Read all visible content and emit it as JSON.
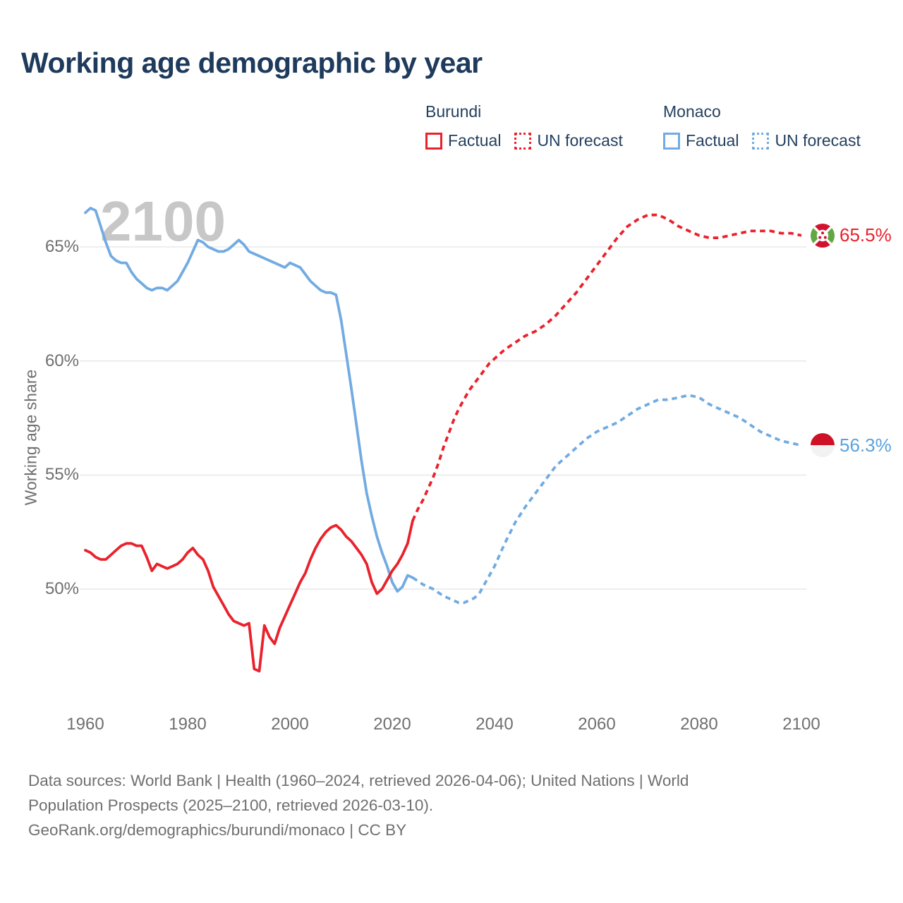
{
  "title": "Working age demographic by year",
  "watermark": "2100",
  "legend": {
    "countries": [
      {
        "name": "Burundi",
        "color": "#e9222c",
        "items": [
          {
            "label": "Factual",
            "style": "solid"
          },
          {
            "label": "UN forecast",
            "style": "dotted"
          }
        ]
      },
      {
        "name": "Monaco",
        "color": "#72abe2",
        "items": [
          {
            "label": "Factual",
            "style": "solid"
          },
          {
            "label": "UN forecast",
            "style": "dotted"
          }
        ]
      }
    ]
  },
  "chart_data": {
    "type": "line",
    "title": "Working age demographic by year",
    "xlabel": "",
    "ylabel": "Working age share",
    "x_ticks": [
      1960,
      1980,
      2000,
      2020,
      2040,
      2060,
      2080,
      2100
    ],
    "y_ticks": [
      {
        "label": "65%",
        "value": 65
      },
      {
        "label": "60%",
        "value": 60
      },
      {
        "label": "55%",
        "value": 55
      },
      {
        "label": "50%",
        "value": 50
      }
    ],
    "xlim": [
      1958,
      2104
    ],
    "ylim": [
      46,
      67.5
    ],
    "grid": true,
    "legend_position": "top-right",
    "series": [
      {
        "name": "Monaco Factual",
        "country": "Monaco",
        "kind": "factual",
        "color": "#72abe2",
        "dashed": false,
        "points": [
          [
            1960,
            66.5
          ],
          [
            1961,
            66.7
          ],
          [
            1962,
            66.6
          ],
          [
            1963,
            65.9
          ],
          [
            1964,
            65.2
          ],
          [
            1965,
            64.6
          ],
          [
            1966,
            64.4
          ],
          [
            1967,
            64.3
          ],
          [
            1968,
            64.3
          ],
          [
            1969,
            63.9
          ],
          [
            1970,
            63.6
          ],
          [
            1971,
            63.4
          ],
          [
            1972,
            63.2
          ],
          [
            1973,
            63.1
          ],
          [
            1974,
            63.2
          ],
          [
            1975,
            63.2
          ],
          [
            1976,
            63.1
          ],
          [
            1977,
            63.3
          ],
          [
            1978,
            63.5
          ],
          [
            1979,
            63.9
          ],
          [
            1980,
            64.3
          ],
          [
            1981,
            64.8
          ],
          [
            1982,
            65.3
          ],
          [
            1983,
            65.2
          ],
          [
            1984,
            65.0
          ],
          [
            1985,
            64.9
          ],
          [
            1986,
            64.8
          ],
          [
            1987,
            64.8
          ],
          [
            1988,
            64.9
          ],
          [
            1989,
            65.1
          ],
          [
            1990,
            65.3
          ],
          [
            1991,
            65.1
          ],
          [
            1992,
            64.8
          ],
          [
            1993,
            64.7
          ],
          [
            1994,
            64.6
          ],
          [
            1995,
            64.5
          ],
          [
            1996,
            64.4
          ],
          [
            1997,
            64.3
          ],
          [
            1998,
            64.2
          ],
          [
            1999,
            64.1
          ],
          [
            2000,
            64.3
          ],
          [
            2001,
            64.2
          ],
          [
            2002,
            64.1
          ],
          [
            2003,
            63.8
          ],
          [
            2004,
            63.5
          ],
          [
            2005,
            63.3
          ],
          [
            2006,
            63.1
          ],
          [
            2007,
            63.0
          ],
          [
            2008,
            63.0
          ],
          [
            2009,
            62.9
          ],
          [
            2010,
            61.8
          ],
          [
            2011,
            60.3
          ],
          [
            2012,
            58.8
          ],
          [
            2013,
            57.2
          ],
          [
            2014,
            55.6
          ],
          [
            2015,
            54.2
          ],
          [
            2016,
            53.2
          ],
          [
            2017,
            52.3
          ],
          [
            2018,
            51.6
          ],
          [
            2019,
            51.0
          ],
          [
            2020,
            50.3
          ],
          [
            2021,
            49.9
          ],
          [
            2022,
            50.1
          ],
          [
            2023,
            50.6
          ],
          [
            2024,
            50.5
          ]
        ]
      },
      {
        "name": "Monaco UN forecast",
        "country": "Monaco",
        "kind": "forecast",
        "color": "#72abe2",
        "dashed": true,
        "points": [
          [
            2024,
            50.5
          ],
          [
            2026,
            50.2
          ],
          [
            2028,
            50.0
          ],
          [
            2030,
            49.7
          ],
          [
            2032,
            49.5
          ],
          [
            2033,
            49.4
          ],
          [
            2034,
            49.4
          ],
          [
            2035,
            49.5
          ],
          [
            2036,
            49.6
          ],
          [
            2037,
            49.8
          ],
          [
            2038,
            50.2
          ],
          [
            2039,
            50.6
          ],
          [
            2040,
            51.0
          ],
          [
            2042,
            52.0
          ],
          [
            2044,
            52.9
          ],
          [
            2046,
            53.6
          ],
          [
            2048,
            54.2
          ],
          [
            2050,
            54.8
          ],
          [
            2052,
            55.4
          ],
          [
            2054,
            55.8
          ],
          [
            2056,
            56.2
          ],
          [
            2058,
            56.6
          ],
          [
            2060,
            56.9
          ],
          [
            2062,
            57.1
          ],
          [
            2064,
            57.3
          ],
          [
            2066,
            57.6
          ],
          [
            2068,
            57.9
          ],
          [
            2070,
            58.1
          ],
          [
            2072,
            58.3
          ],
          [
            2074,
            58.3
          ],
          [
            2076,
            58.4
          ],
          [
            2078,
            58.5
          ],
          [
            2080,
            58.4
          ],
          [
            2082,
            58.1
          ],
          [
            2084,
            57.9
          ],
          [
            2086,
            57.7
          ],
          [
            2088,
            57.5
          ],
          [
            2090,
            57.2
          ],
          [
            2092,
            56.9
          ],
          [
            2094,
            56.7
          ],
          [
            2096,
            56.5
          ],
          [
            2098,
            56.4
          ],
          [
            2100,
            56.3
          ]
        ]
      },
      {
        "name": "Burundi UN forecast",
        "country": "Burundi",
        "kind": "forecast",
        "color": "#e9222c",
        "dashed": true,
        "points": [
          [
            2024,
            53.0
          ],
          [
            2025,
            53.5
          ],
          [
            2026,
            53.9
          ],
          [
            2027,
            54.4
          ],
          [
            2028,
            54.9
          ],
          [
            2029,
            55.5
          ],
          [
            2030,
            56.2
          ],
          [
            2031,
            56.8
          ],
          [
            2032,
            57.4
          ],
          [
            2033,
            57.9
          ],
          [
            2034,
            58.3
          ],
          [
            2035,
            58.7
          ],
          [
            2036,
            59.0
          ],
          [
            2037,
            59.3
          ],
          [
            2038,
            59.6
          ],
          [
            2039,
            59.9
          ],
          [
            2040,
            60.1
          ],
          [
            2042,
            60.5
          ],
          [
            2044,
            60.8
          ],
          [
            2046,
            61.1
          ],
          [
            2048,
            61.3
          ],
          [
            2050,
            61.6
          ],
          [
            2052,
            62.0
          ],
          [
            2054,
            62.5
          ],
          [
            2056,
            63.0
          ],
          [
            2058,
            63.6
          ],
          [
            2060,
            64.2
          ],
          [
            2062,
            64.8
          ],
          [
            2064,
            65.4
          ],
          [
            2066,
            65.9
          ],
          [
            2068,
            66.2
          ],
          [
            2070,
            66.4
          ],
          [
            2072,
            66.4
          ],
          [
            2074,
            66.2
          ],
          [
            2076,
            65.9
          ],
          [
            2078,
            65.7
          ],
          [
            2080,
            65.5
          ],
          [
            2082,
            65.4
          ],
          [
            2084,
            65.4
          ],
          [
            2086,
            65.5
          ],
          [
            2088,
            65.6
          ],
          [
            2090,
            65.7
          ],
          [
            2092,
            65.7
          ],
          [
            2094,
            65.7
          ],
          [
            2096,
            65.6
          ],
          [
            2098,
            65.6
          ],
          [
            2100,
            65.5
          ]
        ]
      },
      {
        "name": "Burundi Factual",
        "country": "Burundi",
        "kind": "factual",
        "color": "#e9222c",
        "dashed": false,
        "points": [
          [
            1960,
            51.7
          ],
          [
            1961,
            51.6
          ],
          [
            1962,
            51.4
          ],
          [
            1963,
            51.3
          ],
          [
            1964,
            51.3
          ],
          [
            1965,
            51.5
          ],
          [
            1966,
            51.7
          ],
          [
            1967,
            51.9
          ],
          [
            1968,
            52.0
          ],
          [
            1969,
            52.0
          ],
          [
            1970,
            51.9
          ],
          [
            1971,
            51.9
          ],
          [
            1972,
            51.4
          ],
          [
            1973,
            50.8
          ],
          [
            1974,
            51.1
          ],
          [
            1975,
            51.0
          ],
          [
            1976,
            50.9
          ],
          [
            1977,
            51.0
          ],
          [
            1978,
            51.1
          ],
          [
            1979,
            51.3
          ],
          [
            1980,
            51.6
          ],
          [
            1981,
            51.8
          ],
          [
            1982,
            51.5
          ],
          [
            1983,
            51.3
          ],
          [
            1984,
            50.8
          ],
          [
            1985,
            50.1
          ],
          [
            1986,
            49.7
          ],
          [
            1987,
            49.3
          ],
          [
            1988,
            48.9
          ],
          [
            1989,
            48.6
          ],
          [
            1990,
            48.5
          ],
          [
            1991,
            48.4
          ],
          [
            1992,
            48.5
          ],
          [
            1993,
            46.5
          ],
          [
            1994,
            46.4
          ],
          [
            1995,
            48.4
          ],
          [
            1996,
            47.9
          ],
          [
            1997,
            47.6
          ],
          [
            1998,
            48.3
          ],
          [
            1999,
            48.8
          ],
          [
            2000,
            49.3
          ],
          [
            2001,
            49.8
          ],
          [
            2002,
            50.3
          ],
          [
            2003,
            50.7
          ],
          [
            2004,
            51.3
          ],
          [
            2005,
            51.8
          ],
          [
            2006,
            52.2
          ],
          [
            2007,
            52.5
          ],
          [
            2008,
            52.7
          ],
          [
            2009,
            52.8
          ],
          [
            2010,
            52.6
          ],
          [
            2011,
            52.3
          ],
          [
            2012,
            52.1
          ],
          [
            2013,
            51.8
          ],
          [
            2014,
            51.5
          ],
          [
            2015,
            51.1
          ],
          [
            2016,
            50.3
          ],
          [
            2017,
            49.8
          ],
          [
            2018,
            50.0
          ],
          [
            2019,
            50.4
          ],
          [
            2020,
            50.8
          ],
          [
            2021,
            51.1
          ],
          [
            2022,
            51.5
          ],
          [
            2023,
            52.0
          ],
          [
            2024,
            53.0
          ]
        ]
      }
    ]
  },
  "end_labels": [
    {
      "country": "Burundi",
      "value": "65.5%",
      "value_num": 65.5,
      "color": "#e9222c",
      "flag": "burundi-flag"
    },
    {
      "country": "Monaco",
      "value": "56.3%",
      "value_num": 56.3,
      "color": "#5ba2db",
      "flag": "monaco-flag"
    }
  ],
  "footer": {
    "line1": "Data sources: World Bank | Health (1960–2024, retrieved 2026-04-06); United Nations | World",
    "line2": "Population Prospects (2025–2100, retrieved 2026-03-10).",
    "line3": "GeoRank.org/demographics/burundi/monaco | CC BY"
  }
}
